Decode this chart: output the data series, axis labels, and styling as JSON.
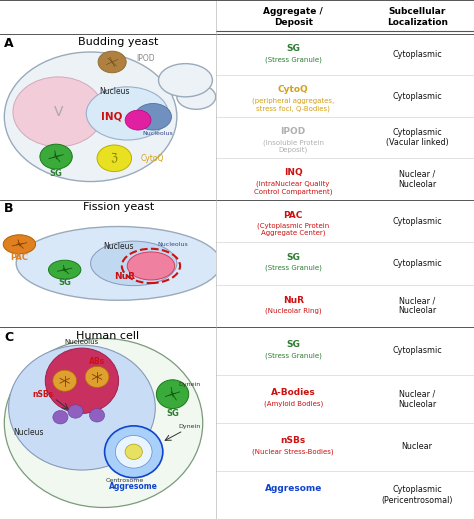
{
  "panel_labels": [
    "A",
    "B",
    "C"
  ],
  "panel_titles": [
    "Budding yeast",
    "Fission yeast",
    "Human cell"
  ],
  "header_col1": "Aggregate /\nDeposit",
  "header_col2": "Subcellular\nLocalization",
  "panel_bg_colors": [
    "#fef9e6",
    "#fde8e8",
    "#e8f5ee"
  ],
  "rows": {
    "A": [
      {
        "name1": "SG",
        "name2": "(Stress Granule)",
        "color1": "#2e7d32",
        "loc": "Cytoplasmic"
      },
      {
        "name1": "CytoQ",
        "name2": "(peripheral aggregates,\nstress foci, Q-Bodies)",
        "color1": "#d4a017",
        "loc": "Cytoplasmic"
      },
      {
        "name1": "IPOD",
        "name2": "(Insoluble Protein\nDeposit)",
        "color1": "#b0b0b0",
        "loc": "Cytoplasmic\n(Vacular linked)"
      },
      {
        "name1": "INQ",
        "name2": "(IntraNuclear Quality\nControl Compartment)",
        "color1": "#cc1111",
        "loc": "Nuclear /\nNucleolar"
      }
    ],
    "B": [
      {
        "name1": "PAC",
        "name2": "(Cytoplasmic Protein\nAggregate Center)",
        "color1": "#cc1111",
        "loc": "Cytoplasmic"
      },
      {
        "name1": "SG",
        "name2": "(Stress Granule)",
        "color1": "#2e7d32",
        "loc": "Cytoplasmic"
      },
      {
        "name1": "NuR",
        "name2": "(Nucleolar Ring)",
        "color1": "#cc1111",
        "loc": "Nuclear /\nNucleolar"
      }
    ],
    "C": [
      {
        "name1": "SG",
        "name2": "(Stress Granule)",
        "color1": "#2e7d32",
        "loc": "Cytoplasmic"
      },
      {
        "name1": "A-Bodies",
        "name2": "(Amyloid Bodies)",
        "color1": "#cc1111",
        "loc": "Nuclear /\nNucleolar"
      },
      {
        "name1": "nSBs",
        "name2": "(Nuclear Stress-Bodies)",
        "color1": "#cc1111",
        "loc": "Nuclear"
      },
      {
        "name1": "Aggresome",
        "name2": "",
        "color1": "#1144cc",
        "loc": "Cytoplasmic\n(Pericentrosomal)"
      }
    ]
  },
  "figsize": [
    4.74,
    5.19
  ],
  "dpi": 100
}
